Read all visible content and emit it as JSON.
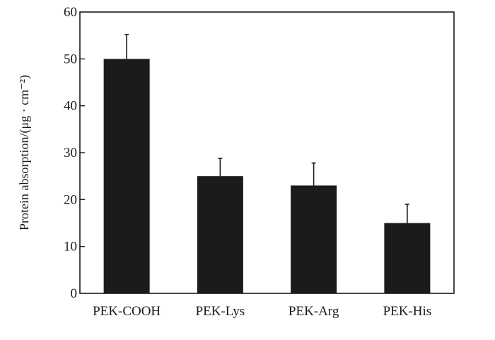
{
  "chart_data": {
    "type": "bar",
    "title": "",
    "xlabel": "",
    "ylabel": "Protein absorption/(μg · cm⁻²)",
    "categories": [
      "PEK-COOH",
      "PEK-Lys",
      "PEK-Arg",
      "PEK-His"
    ],
    "values": [
      50,
      25,
      23,
      15
    ],
    "error_upper": [
      5.2,
      3.8,
      4.8,
      4.0
    ],
    "ylim": [
      0,
      60
    ],
    "yticks": [
      0,
      10,
      20,
      30,
      40,
      50,
      60
    ],
    "grid": false,
    "legend": "none",
    "bar_color": "#1b1b1b"
  }
}
